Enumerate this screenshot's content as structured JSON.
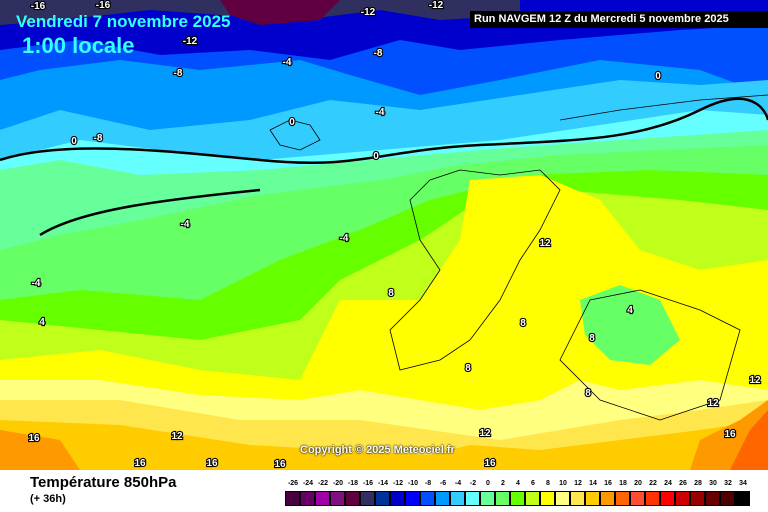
{
  "header": {
    "date": "Vendredi 7 novembre 2025",
    "time": "1:00 locale",
    "run": "Run NAVGEM 12 Z du Mercredi 5 novembre 2025"
  },
  "copyright": "Copyright © 2025 Meteociel.fr",
  "footer": {
    "parameter": "Température 850hPa",
    "lead_time": "(+ 36h)"
  },
  "legend": {
    "unit_values": [
      -26,
      -24,
      -22,
      -20,
      -18,
      -16,
      -14,
      -12,
      -10,
      -8,
      -6,
      -4,
      -2,
      0,
      2,
      4,
      6,
      8,
      10,
      12,
      14,
      16,
      18,
      20,
      22,
      24,
      26,
      28,
      30,
      32,
      34
    ],
    "colors": [
      "#4a0040",
      "#660066",
      "#a000a8",
      "#801080",
      "#600040",
      "#303060",
      "#003399",
      "#0000cc",
      "#0000ff",
      "#0050ff",
      "#0099ff",
      "#33ccff",
      "#66ffff",
      "#66ff99",
      "#66ff66",
      "#66ff00",
      "#c0ff1a",
      "#ffff00",
      "#ffff80",
      "#ffe64d",
      "#ffcc00",
      "#ff9900",
      "#ff6600",
      "#ff4d33",
      "#ff3300",
      "#ff0000",
      "#cc0000",
      "#990000",
      "#660000",
      "#4d0000",
      "#000000"
    ]
  },
  "contour_labels": [
    "-16",
    "-16",
    "-12",
    "-12",
    "-12",
    "-8",
    "-8",
    "-8",
    "-4",
    "-4",
    "0",
    "0",
    "0",
    "0",
    "-4",
    "-4",
    "-4",
    "4",
    "8",
    "8",
    "8",
    "12",
    "4",
    "8",
    "8",
    "12",
    "12",
    "16",
    "12",
    "12",
    "16",
    "16",
    "16",
    "16",
    "16"
  ]
}
